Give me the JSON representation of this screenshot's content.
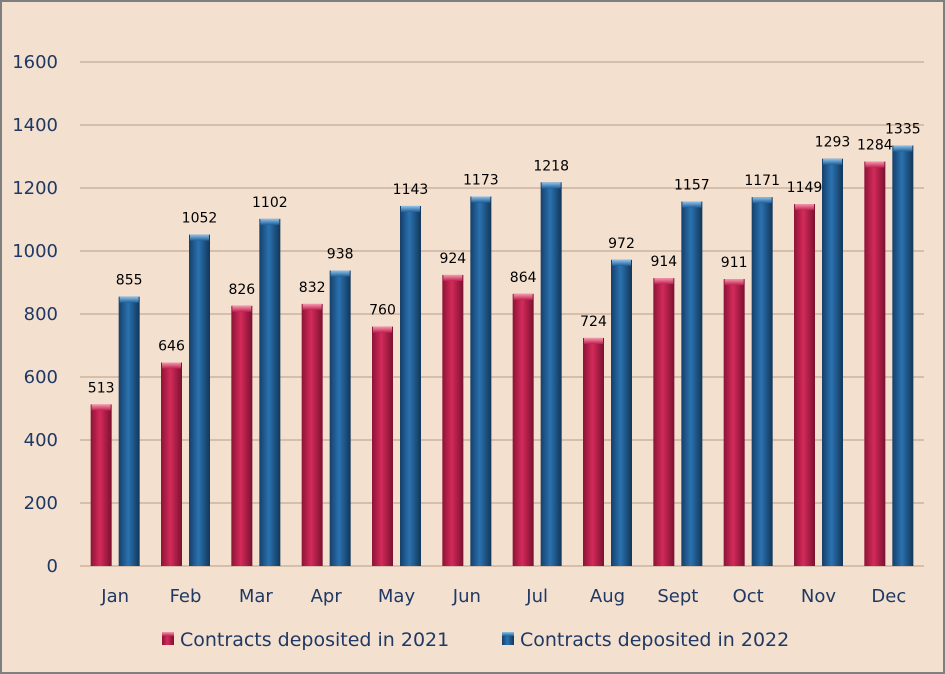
{
  "chart_data": {
    "type": "bar",
    "categories": [
      "Jan",
      "Feb",
      "Mar",
      "Apr",
      "May",
      "Jun",
      "Jul",
      "Aug",
      "Sept",
      "Oct",
      "Nov",
      "Dec"
    ],
    "series": [
      {
        "name": "Contracts deposited in 2021",
        "color": "#c0204e",
        "values": [
          513,
          646,
          826,
          832,
          760,
          924,
          864,
          724,
          914,
          911,
          1149,
          1284
        ]
      },
      {
        "name": "Contracts deposited in 2022",
        "color": "#1f5e96",
        "values": [
          855,
          1052,
          1102,
          938,
          1143,
          1173,
          1218,
          972,
          1157,
          1171,
          1293,
          1335
        ]
      }
    ],
    "ylim": [
      0,
      1600
    ],
    "yticks": [
      0,
      200,
      400,
      600,
      800,
      1000,
      1200,
      1400,
      1600
    ],
    "grid": true,
    "legend": "bottom",
    "title": "",
    "xlabel": "",
    "ylabel": ""
  }
}
